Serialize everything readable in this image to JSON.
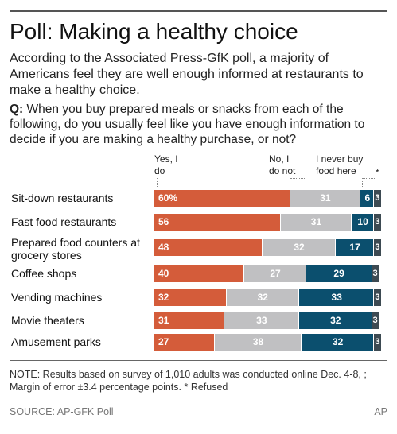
{
  "title": "Poll: Making a healthy choice",
  "intro": "According to the Associated Press-GfK poll, a majority of Americans feel they are well enough informed at restaurants to make a healthy choice.",
  "question_prefix": "Q:",
  "question": "When you buy prepared meals or snacks from each of the following, do you usually feel like you have enough information to decide if you are making a healthy purchase, or not?",
  "note": "NOTE: Results based on survey of 1,010 adults was conducted online Dec. 4-8, ; Margin of error ±3.4 percentage points. * Refused",
  "source": "SOURCE: AP-GFK Poll",
  "credit": "AP",
  "colors": {
    "yes": "#d45c3a",
    "no": "#c0c0c2",
    "never": "#0b4f6e",
    "refused": "#3d4a52"
  },
  "chart_data": {
    "type": "bar",
    "orientation": "horizontal",
    "stacked": true,
    "unit": "%",
    "categories": [
      "Sit-down restaurants",
      "Fast food restaurants",
      "Prepared food counters at grocery stores",
      "Coffee shops",
      "Vending machines",
      "Movie theaters",
      "Amusement parks"
    ],
    "series": [
      {
        "name": "Yes, I do",
        "values": [
          60,
          56,
          48,
          40,
          32,
          31,
          27
        ],
        "labels": [
          "60%",
          "56",
          "48",
          "40",
          "32",
          "31",
          "27"
        ]
      },
      {
        "name": "No, I do not",
        "values": [
          31,
          31,
          32,
          27,
          32,
          33,
          38
        ],
        "labels": [
          "31",
          "31",
          "32",
          "27",
          "32",
          "33",
          "38"
        ]
      },
      {
        "name": "I never buy food here",
        "values": [
          6,
          10,
          17,
          29,
          33,
          32,
          32
        ],
        "labels": [
          "6",
          "10",
          "17",
          "29",
          "33",
          "32",
          "32"
        ]
      },
      {
        "name": "*",
        "values": [
          3,
          3,
          3,
          3,
          3,
          3,
          3
        ],
        "labels": [
          "3",
          "3",
          "3",
          "3",
          "3",
          "3",
          "3"
        ]
      }
    ],
    "xlim": [
      0,
      100
    ]
  }
}
